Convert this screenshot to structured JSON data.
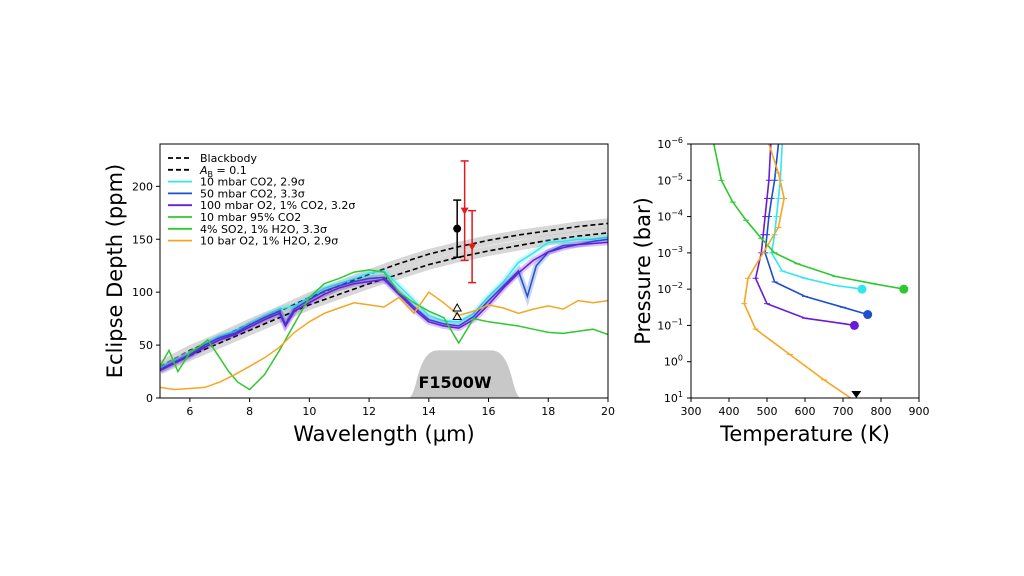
{
  "chart_data": [
    {
      "type": "line",
      "title": "",
      "xlabel": "Wavelength (μm)",
      "ylabel": "Eclipse Depth (ppm)",
      "xlim": [
        5,
        20
      ],
      "ylim": [
        0,
        240
      ],
      "xticks": [
        "6",
        "8",
        "10",
        "12",
        "14",
        "16",
        "18",
        "20"
      ],
      "yticks": [
        "0",
        "50",
        "100",
        "150",
        "200"
      ],
      "filter_label": "F1500W",
      "legend": [
        {
          "label": "Blackbody",
          "color": "#000000",
          "dash": true
        },
        {
          "label": "A_B = 0.1",
          "label_main": "A",
          "label_sub": "B",
          "label_rest": " = 0.1",
          "color": "#000000",
          "dash": true
        },
        {
          "label": "10 mbar CO2, 2.9σ",
          "color": "#33e6ee"
        },
        {
          "label": "50 mbar CO2, 3.3σ",
          "color": "#1f4fd0"
        },
        {
          "label": "100 mbar O2, 1% CO2, 3.2σ",
          "color": "#6a1bd8"
        },
        {
          "label": "10 mbar 95% CO2",
          "color": "#2ec92e"
        },
        {
          "label": "4% SO2, 1% H2O, 3.3σ",
          "color": "#2ec92e"
        },
        {
          "label": "10 bar O2, 1% H2O, 2.9σ",
          "color": "#f5a623"
        }
      ],
      "series": [
        {
          "name": "Blackbody",
          "color": "#000000",
          "dash": true,
          "x": [
            5,
            6,
            7,
            8,
            9,
            10,
            11,
            12,
            13,
            14,
            15,
            16,
            17,
            18,
            19,
            20
          ],
          "y": [
            30,
            45,
            57,
            70,
            82,
            95,
            106,
            117,
            127,
            136,
            143,
            149,
            154,
            158,
            162,
            165
          ]
        },
        {
          "name": "A_B = 0.1",
          "color": "#000000",
          "dash": true,
          "x": [
            5,
            6,
            7,
            8,
            9,
            10,
            11,
            12,
            13,
            14,
            15,
            16,
            17,
            18,
            19,
            20
          ],
          "y": [
            27,
            40,
            52,
            64,
            76,
            88,
            98,
            108,
            117,
            126,
            133,
            139,
            144,
            149,
            153,
            156
          ]
        },
        {
          "name": "10 mbar CO2, 2.9σ",
          "color": "#33e6ee",
          "x": [
            5,
            5.5,
            6,
            6.5,
            7,
            7.5,
            8,
            8.5,
            9,
            9.5,
            10,
            10.5,
            11,
            11.5,
            12,
            12.5,
            13,
            13.5,
            14,
            14.5,
            15,
            15.5,
            16,
            16.5,
            17,
            17.5,
            18,
            18.5,
            19,
            19.5,
            20
          ],
          "y": [
            28,
            35,
            42,
            51,
            58,
            63,
            70,
            77,
            84,
            87,
            95,
            104,
            108,
            113,
            118,
            120,
            106,
            92,
            78,
            73,
            72,
            80,
            96,
            110,
            128,
            137,
            147,
            148,
            150,
            150,
            152
          ]
        },
        {
          "name": "50 mbar CO2, 3.3σ",
          "color": "#1f4fd0",
          "x": [
            5,
            5.5,
            6,
            6.5,
            7,
            7.5,
            8,
            8.5,
            9,
            9.2,
            9.5,
            10,
            10.5,
            11,
            11.5,
            12,
            12.5,
            13,
            13.5,
            14,
            14.5,
            15,
            15.5,
            16,
            16.5,
            17,
            17.3,
            17.6,
            18,
            18.5,
            19,
            19.5,
            20
          ],
          "y": [
            27,
            34,
            41,
            50,
            57,
            61,
            69,
            76,
            82,
            70,
            84,
            93,
            101,
            106,
            110,
            113,
            114,
            100,
            86,
            74,
            70,
            68,
            77,
            92,
            106,
            120,
            96,
            125,
            138,
            144,
            145,
            148,
            150
          ]
        },
        {
          "name": "100 mbar O2, 1% CO2, 3.2σ",
          "color": "#6a1bd8",
          "x": [
            5,
            5.5,
            6,
            6.5,
            7,
            7.5,
            8,
            8.5,
            9,
            9.2,
            9.5,
            10,
            10.5,
            11,
            11.5,
            12,
            12.5,
            13,
            13.5,
            14,
            14.5,
            15,
            15.5,
            16,
            16.5,
            17,
            17.5,
            18,
            18.5,
            19,
            19.5,
            20
          ],
          "y": [
            26,
            33,
            40,
            48,
            55,
            60,
            67,
            74,
            80,
            68,
            82,
            90,
            98,
            104,
            108,
            110,
            112,
            98,
            84,
            72,
            68,
            66,
            74,
            88,
            104,
            118,
            130,
            138,
            142,
            145,
            146,
            147
          ]
        },
        {
          "name": "4% SO2, 1% H2O, 3.3σ",
          "color": "#2ec92e",
          "x": [
            5,
            5.3,
            5.6,
            6,
            6.3,
            6.6,
            7,
            7.3,
            7.6,
            8,
            8.5,
            9,
            9.5,
            10,
            10.5,
            11,
            11.5,
            12,
            12.5,
            13,
            13.5,
            14,
            14.5,
            15,
            15.5,
            16,
            16.5,
            17,
            17.5,
            18,
            18.5,
            19,
            19.5,
            20
          ],
          "y": [
            30,
            45,
            25,
            43,
            48,
            55,
            38,
            25,
            15,
            8,
            22,
            45,
            70,
            95,
            108,
            113,
            119,
            121,
            119,
            100,
            90,
            82,
            76,
            52,
            75,
            72,
            70,
            68,
            65,
            62,
            61,
            63,
            65,
            60
          ]
        },
        {
          "name": "10 bar O2, 1% H2O, 2.9σ",
          "color": "#f5a623",
          "x": [
            5,
            5.5,
            6,
            6.5,
            7,
            7.5,
            8,
            8.5,
            9,
            9.5,
            10,
            10.5,
            11,
            11.5,
            12,
            12.5,
            13,
            13.5,
            14,
            14.5,
            15,
            15.5,
            16,
            16.5,
            17,
            17.5,
            18,
            18.5,
            19,
            19.5,
            20
          ],
          "y": [
            10,
            8,
            9,
            10,
            15,
            22,
            30,
            38,
            48,
            62,
            72,
            80,
            85,
            90,
            88,
            86,
            95,
            80,
            100,
            90,
            78,
            82,
            88,
            85,
            80,
            84,
            87,
            84,
            92,
            90,
            92
          ]
        }
      ],
      "observations": [
        {
          "x": 14.95,
          "y": 160,
          "yerr": 27,
          "color": "#000000"
        },
        {
          "x": 15.2,
          "y": 177,
          "yerr": 47,
          "color": "#e01b1b"
        },
        {
          "x": 15.45,
          "y": 143,
          "yerr": 34,
          "color": "#e01b1b"
        }
      ],
      "triangle_markers": [
        {
          "x": 14.95,
          "y": 85
        },
        {
          "x": 14.95,
          "y": 77
        }
      ],
      "filter_band": {
        "x_start": 13.3,
        "x_end": 17.1,
        "peak": 45
      }
    },
    {
      "type": "line",
      "title": "",
      "xlabel": "Temperature (K)",
      "ylabel": "Pressure (bar)",
      "xlim": [
        300,
        900
      ],
      "ylim_log": [
        -6,
        1
      ],
      "xticks": [
        "300",
        "400",
        "500",
        "600",
        "700",
        "800",
        "900"
      ],
      "yticks": [
        {
          "base": "10",
          "exp": "−6"
        },
        {
          "base": "10",
          "exp": "−5"
        },
        {
          "base": "10",
          "exp": "−4"
        },
        {
          "base": "10",
          "exp": "−3"
        },
        {
          "base": "10",
          "exp": "−2"
        },
        {
          "base": "10",
          "exp": "−1"
        },
        {
          "base": "10",
          "exp": "0"
        },
        {
          "base": "10",
          "exp": "1"
        }
      ],
      "profiles": [
        {
          "name": "10 mbar CO2",
          "color": "#33e6ee",
          "T": [
            540,
            535,
            530,
            525,
            520,
            512,
            540,
            600,
            680,
            750
          ],
          "logP": [
            -6,
            -5,
            -4.5,
            -4,
            -3.5,
            -3,
            -2.5,
            -2.3,
            -2.1,
            -2
          ]
        },
        {
          "name": "50 mbar CO2",
          "color": "#1f4fd0",
          "T": [
            530,
            520,
            512,
            505,
            500,
            495,
            520,
            600,
            700,
            765
          ],
          "logP": [
            -6,
            -5,
            -4.5,
            -4,
            -3.5,
            -3,
            -2.2,
            -1.8,
            -1.5,
            -1.3
          ]
        },
        {
          "name": "100 mbar O2, 1% CO2",
          "color": "#6a1bd8",
          "T": [
            510,
            505,
            500,
            495,
            490,
            485,
            470,
            500,
            600,
            700,
            730
          ],
          "logP": [
            -6,
            -5,
            -4.5,
            -4,
            -3.5,
            -3,
            -2.3,
            -1.6,
            -1.2,
            -1.05,
            -1
          ]
        },
        {
          "name": "4% SO2, 1% H2O",
          "color": "#2ec92e",
          "T": [
            360,
            380,
            410,
            445,
            485,
            520,
            580,
            680,
            780,
            860
          ],
          "logP": [
            -6,
            -5,
            -4.4,
            -3.9,
            -3.4,
            -3,
            -2.7,
            -2.35,
            -2.15,
            -2
          ]
        },
        {
          "name": "10 bar O2, 1% H2O",
          "color": "#f5a623",
          "T": [
            505,
            530,
            545,
            530,
            490,
            450,
            440,
            470,
            560,
            650,
            720
          ],
          "logP": [
            -6,
            -5.2,
            -4.5,
            -3.7,
            -3,
            -2.3,
            -1.6,
            -0.9,
            -0.2,
            0.5,
            1
          ]
        }
      ],
      "surface_marker": {
        "T": 720,
        "logP": 1
      }
    }
  ]
}
